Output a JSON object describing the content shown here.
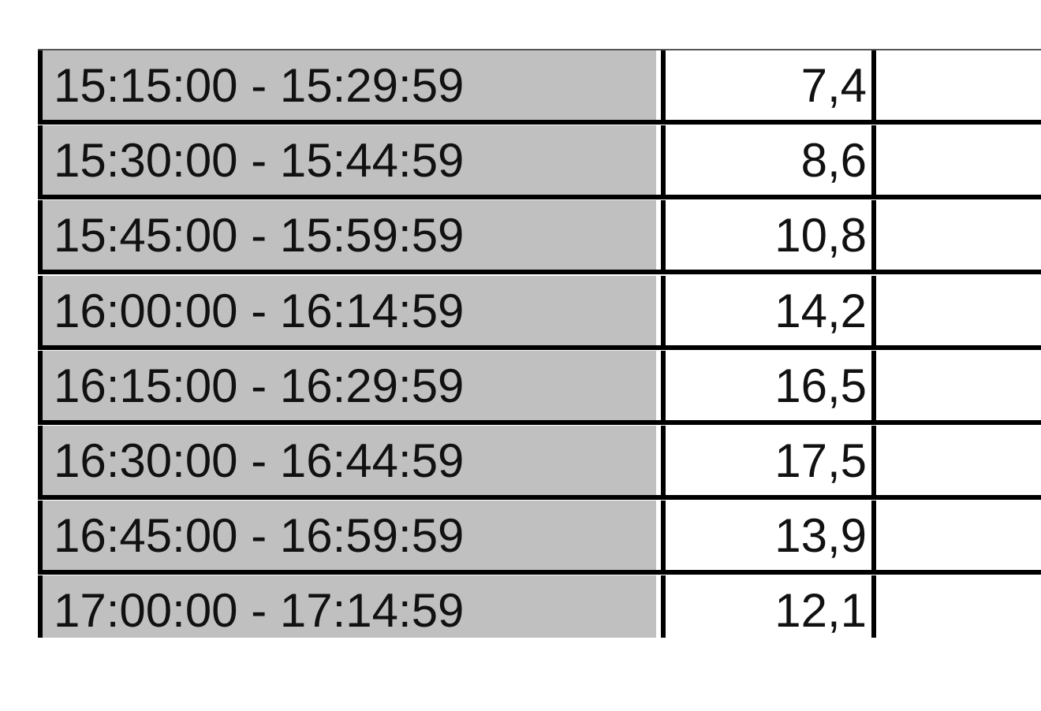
{
  "table": {
    "rows": [
      {
        "interval": "15:15:00 - 15:29:59",
        "value": "7,4",
        "extra": ""
      },
      {
        "interval": "15:30:00 - 15:44:59",
        "value": "8,6",
        "extra": ""
      },
      {
        "interval": "15:45:00 - 15:59:59",
        "value": "10,8",
        "extra": ""
      },
      {
        "interval": "16:00:00 - 16:14:59",
        "value": "14,2",
        "extra": ""
      },
      {
        "interval": "16:15:00 - 16:29:59",
        "value": "16,5",
        "extra": ""
      },
      {
        "interval": "16:30:00 - 16:44:59",
        "value": "17,5",
        "extra": ""
      },
      {
        "interval": "16:45:00 - 16:59:59",
        "value": "13,9",
        "extra": ""
      },
      {
        "interval": "17:00:00 - 17:14:59",
        "value": "12,1",
        "extra": ""
      }
    ],
    "colors": {
      "label_cell": "#c0c0c0",
      "value_cell": "#ffffff",
      "border": "#000000"
    }
  }
}
